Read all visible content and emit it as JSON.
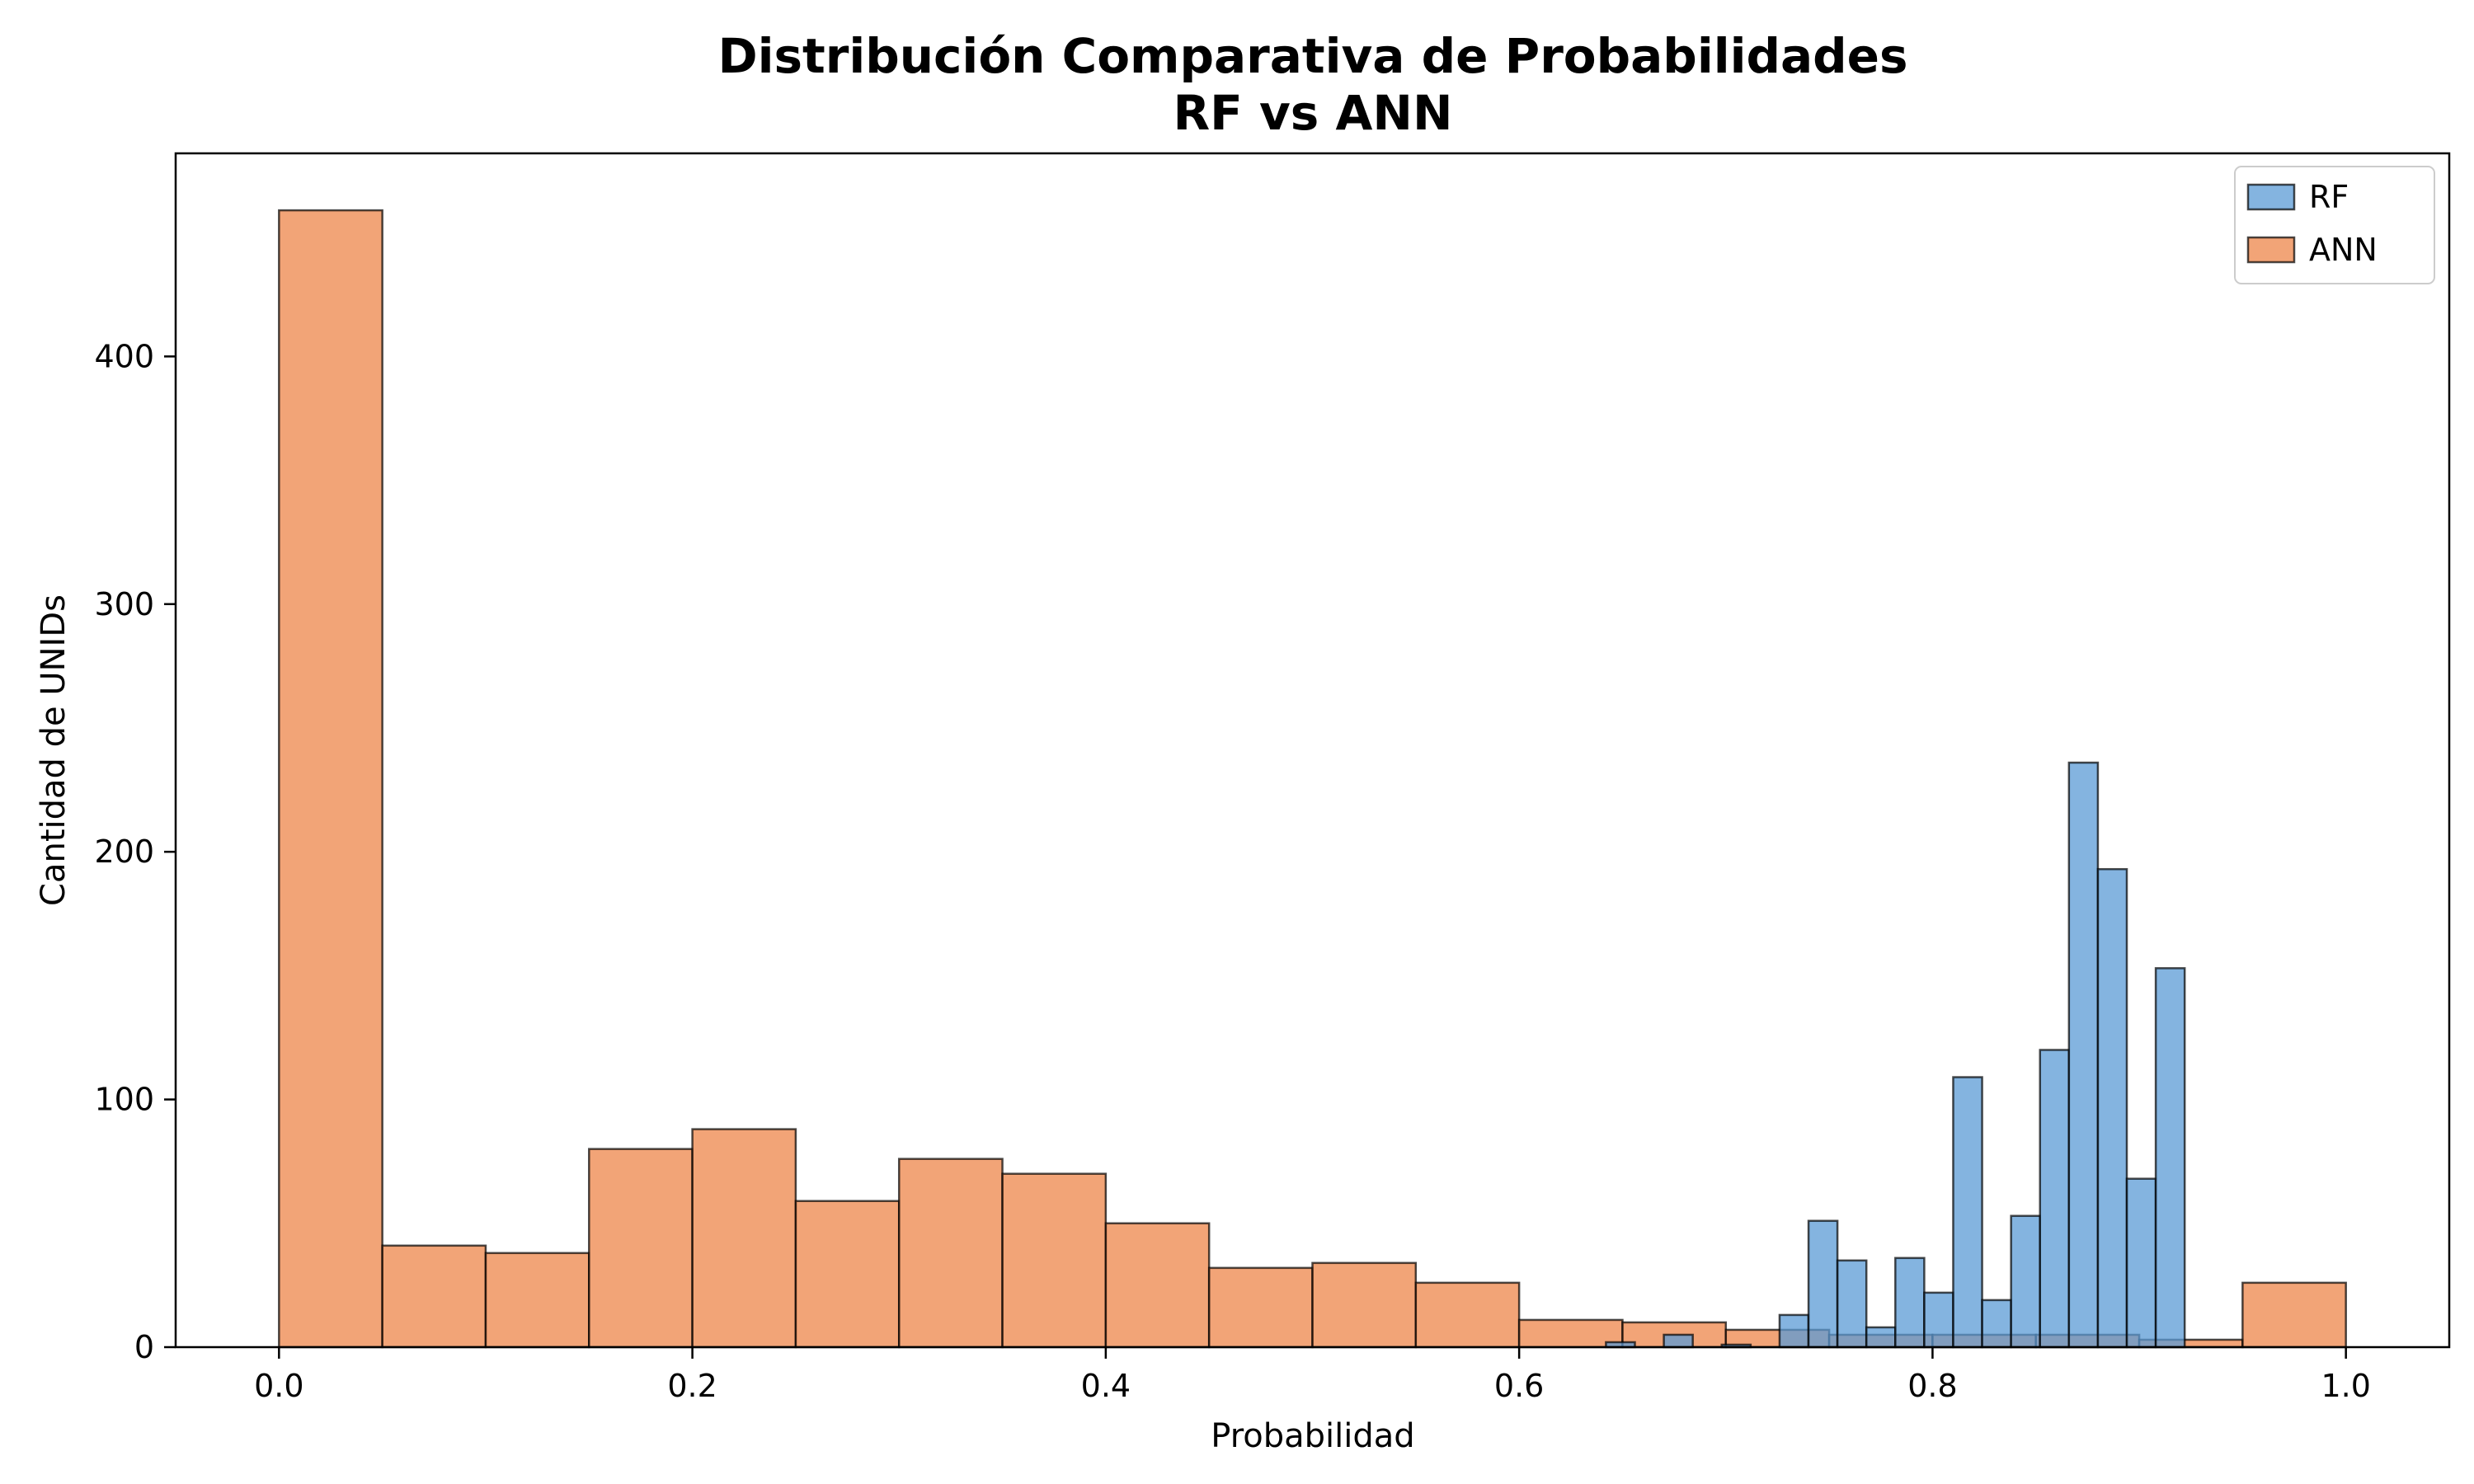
{
  "chart_data": {
    "type": "bar",
    "title": "Distribución Comparativa de Probabilidades",
    "subtitle": "RF vs ANN",
    "xlabel": "Probabilidad",
    "ylabel": "Cantidad de UNIDs",
    "xlim": [
      -0.05,
      1.05
    ],
    "ylim": [
      0,
      482
    ],
    "xticks": [
      0.0,
      0.2,
      0.4,
      0.6,
      0.8,
      1.0
    ],
    "xtick_labels": [
      "0.0",
      "0.2",
      "0.4",
      "0.6",
      "0.8",
      "1.0"
    ],
    "yticks": [
      0,
      100,
      200,
      300,
      400
    ],
    "ytick_labels": [
      "0",
      "100",
      "200",
      "300",
      "400"
    ],
    "grid": false,
    "legend_position": "top-right",
    "series": [
      {
        "name": "ANN",
        "color": "#ee854a",
        "bins": [
          {
            "x0": 0.0,
            "x1": 0.05,
            "count": 459
          },
          {
            "x0": 0.05,
            "x1": 0.1,
            "count": 41
          },
          {
            "x0": 0.1,
            "x1": 0.15,
            "count": 38
          },
          {
            "x0": 0.15,
            "x1": 0.2,
            "count": 80
          },
          {
            "x0": 0.2,
            "x1": 0.25,
            "count": 88
          },
          {
            "x0": 0.25,
            "x1": 0.3,
            "count": 59
          },
          {
            "x0": 0.3,
            "x1": 0.35,
            "count": 76
          },
          {
            "x0": 0.35,
            "x1": 0.4,
            "count": 70
          },
          {
            "x0": 0.4,
            "x1": 0.45,
            "count": 50
          },
          {
            "x0": 0.45,
            "x1": 0.5,
            "count": 32
          },
          {
            "x0": 0.5,
            "x1": 0.55,
            "count": 34
          },
          {
            "x0": 0.55,
            "x1": 0.6,
            "count": 26
          },
          {
            "x0": 0.6,
            "x1": 0.65,
            "count": 11
          },
          {
            "x0": 0.65,
            "x1": 0.7,
            "count": 10
          },
          {
            "x0": 0.7,
            "x1": 0.75,
            "count": 7
          },
          {
            "x0": 0.75,
            "x1": 0.8,
            "count": 5
          },
          {
            "x0": 0.8,
            "x1": 0.85,
            "count": 5
          },
          {
            "x0": 0.85,
            "x1": 0.9,
            "count": 5
          },
          {
            "x0": 0.9,
            "x1": 0.95,
            "count": 3
          },
          {
            "x0": 0.95,
            "x1": 1.0,
            "count": 26
          }
        ]
      },
      {
        "name": "RF",
        "color": "#5b9bd5",
        "bins": [
          {
            "x0": 0.642,
            "x1": 0.656,
            "count": 2
          },
          {
            "x0": 0.67,
            "x1": 0.684,
            "count": 5
          },
          {
            "x0": 0.698,
            "x1": 0.712,
            "count": 1
          },
          {
            "x0": 0.726,
            "x1": 0.74,
            "count": 13
          },
          {
            "x0": 0.74,
            "x1": 0.754,
            "count": 51
          },
          {
            "x0": 0.754,
            "x1": 0.768,
            "count": 35
          },
          {
            "x0": 0.768,
            "x1": 0.782,
            "count": 8
          },
          {
            "x0": 0.782,
            "x1": 0.796,
            "count": 36
          },
          {
            "x0": 0.796,
            "x1": 0.81,
            "count": 22
          },
          {
            "x0": 0.81,
            "x1": 0.824,
            "count": 109
          },
          {
            "x0": 0.824,
            "x1": 0.838,
            "count": 19
          },
          {
            "x0": 0.838,
            "x1": 0.852,
            "count": 53
          },
          {
            "x0": 0.852,
            "x1": 0.866,
            "count": 120
          },
          {
            "x0": 0.866,
            "x1": 0.88,
            "count": 236
          },
          {
            "x0": 0.88,
            "x1": 0.894,
            "count": 193
          },
          {
            "x0": 0.894,
            "x1": 0.908,
            "count": 68
          },
          {
            "x0": 0.908,
            "x1": 0.922,
            "count": 153
          }
        ]
      }
    ],
    "legend": [
      {
        "name": "RF",
        "color": "#5b9bd5"
      },
      {
        "name": "ANN",
        "color": "#ee854a"
      }
    ]
  }
}
